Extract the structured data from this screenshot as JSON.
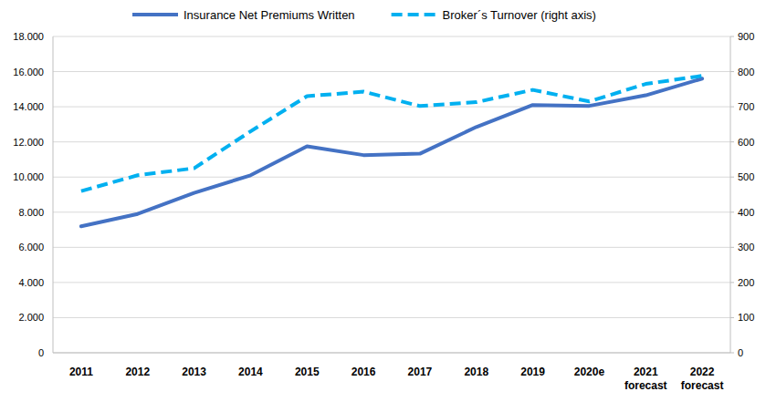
{
  "chart_data": {
    "type": "line",
    "categories": [
      "2011",
      "2012",
      "2013",
      "2014",
      "2015",
      "2016",
      "2017",
      "2018",
      "2019",
      "2020e",
      "2021 forecast",
      "2022 forecast"
    ],
    "series": [
      {
        "name": "Insurance Net Premiums Written",
        "color": "#4472c4",
        "line_style": "solid",
        "values": [
          7200,
          7900,
          9100,
          10100,
          11750,
          11250,
          11330,
          12850,
          14100,
          14050,
          14650,
          15600
        ]
      },
      {
        "name": "Broker´s Turnover (right axis)",
        "color": "#00b0f0",
        "line_style": "dashed",
        "axis": "y2",
        "values": [
          460,
          505,
          525,
          630,
          730,
          743,
          702,
          713,
          748,
          715,
          765,
          788
        ]
      }
    ],
    "ylim": [
      0,
      18000
    ],
    "yticks": [
      0,
      {
        "value": 2000,
        "label": "2.000"
      },
      {
        "value": 4000,
        "label": "4.000"
      },
      {
        "value": 6000,
        "label": "6.000"
      },
      {
        "value": 8000,
        "label": "8.000"
      },
      {
        "value": 10000,
        "label": "10.000"
      },
      {
        "value": 12000,
        "label": "12.000"
      },
      {
        "value": 14000,
        "label": "14.000"
      },
      {
        "value": 16000,
        "label": "16.000"
      },
      {
        "value": 18000,
        "label": "18.000"
      }
    ],
    "y2lim": [
      0,
      900
    ],
    "y2ticks": [
      0,
      100,
      200,
      300,
      400,
      500,
      600,
      700,
      800,
      900
    ],
    "grid": true,
    "legend": "top"
  }
}
